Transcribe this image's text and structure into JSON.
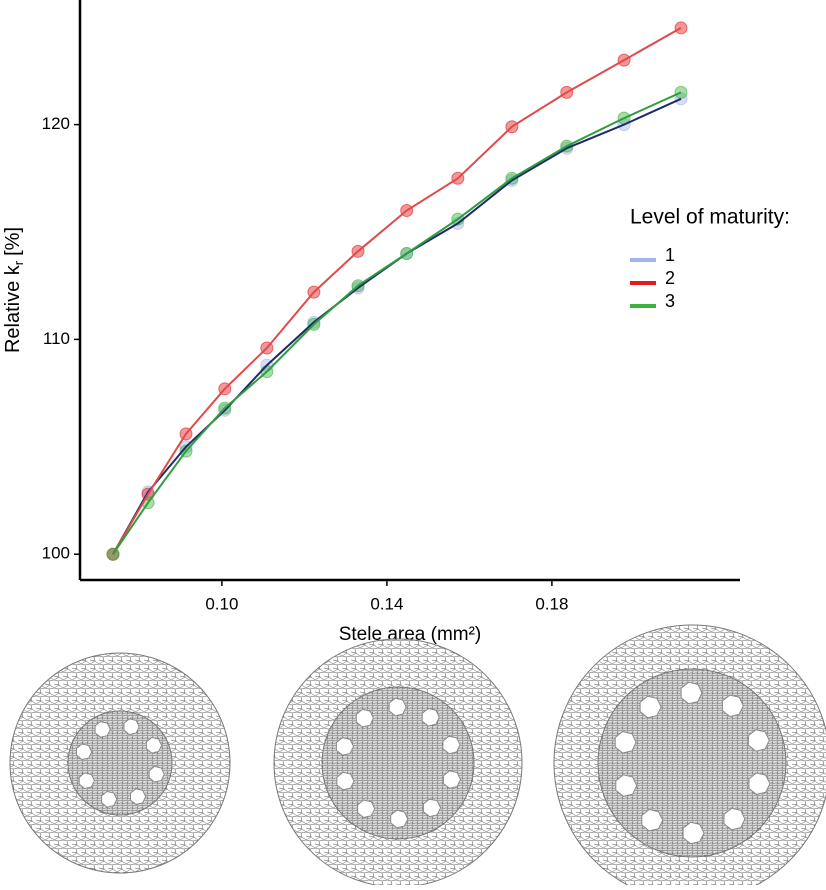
{
  "chart_data": {
    "type": "scatter",
    "x_label": "Stele area (mm²)",
    "y_label": "Relative k",
    "y_label_subscript": "r",
    "y_label_suffix": "[%]",
    "legend_title": "Level of maturity:",
    "legend_position": "right",
    "grid": false,
    "xlim": [
      0.0656,
      0.2256
    ],
    "ylim": [
      98.8,
      125.8
    ],
    "xticks": [
      {
        "value": 0.1,
        "label": "0.10"
      },
      {
        "value": 0.14,
        "label": "0.14"
      },
      {
        "value": 0.18,
        "label": "0.18"
      }
    ],
    "yticks": [
      100,
      110,
      120
    ],
    "x": [
      0.0736,
      0.0821,
      0.0913,
      0.1007,
      0.1109,
      0.1223,
      0.133,
      0.1448,
      0.1572,
      0.1703,
      0.1836,
      0.1975,
      0.2113
    ],
    "series": [
      {
        "name": "1",
        "color": "#a4b4e8",
        "line_color": "#1f2a6b",
        "values": [
          100,
          102.9,
          105.0,
          106.7,
          108.8,
          110.8,
          112.4,
          114.0,
          115.4,
          117.4,
          118.9,
          120.0,
          121.2
        ]
      },
      {
        "name": "2",
        "color": "#e41a1c",
        "line_color": "#e04a4a",
        "values": [
          100,
          102.8,
          105.6,
          107.7,
          109.6,
          112.2,
          114.1,
          116.0,
          117.5,
          119.9,
          121.5,
          123.0,
          124.5
        ]
      },
      {
        "name": "3",
        "color": "#3cb33c",
        "line_color": "#2e9e3e",
        "values": [
          100,
          102.4,
          104.8,
          106.8,
          108.5,
          110.7,
          112.5,
          114.0,
          115.6,
          117.5,
          119.0,
          120.3,
          121.5
        ]
      }
    ]
  }
}
